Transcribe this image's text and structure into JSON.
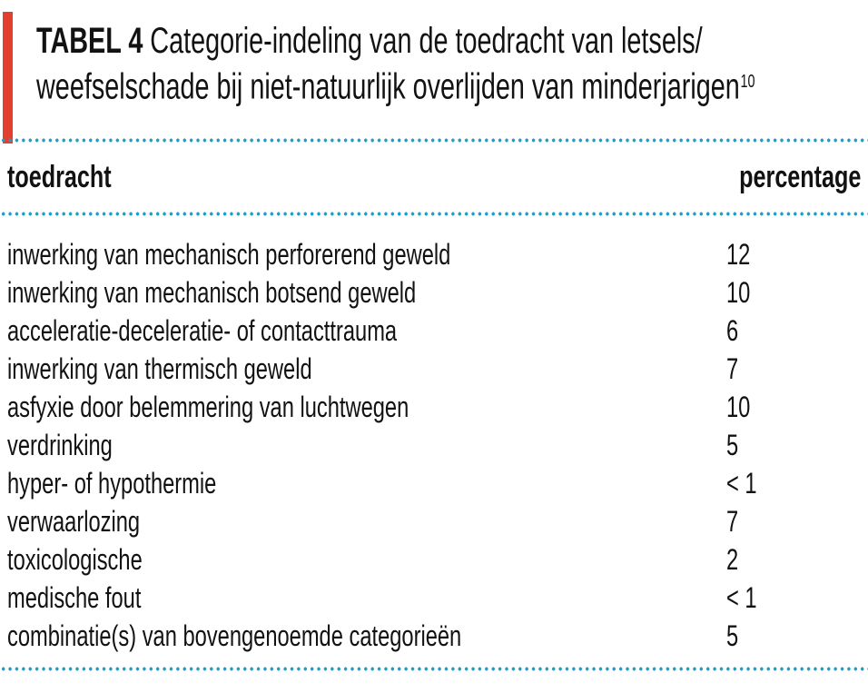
{
  "title": {
    "tag": "TABEL 4",
    "line1_rest": "Categorie-indeling van de toedracht van letsels/",
    "line2": "weefselschade bij niet-natuurlijk overlijden van minderjarigen",
    "footnote_ref": "10"
  },
  "table": {
    "col_left": "toedracht",
    "col_right": "percentage",
    "rows": [
      {
        "label": "inwerking van mechanisch perforerend geweld",
        "value": "12"
      },
      {
        "label": "inwerking van mechanisch botsend geweld",
        "value": "10"
      },
      {
        "label": "acceleratie-deceleratie- of contacttrauma",
        "value": "6"
      },
      {
        "label": "inwerking van thermisch geweld",
        "value": "7"
      },
      {
        "label": "asfyxie door belemmering van luchtwegen",
        "value": "10"
      },
      {
        "label": "verdrinking",
        "value": "5"
      },
      {
        "label": "hyper- of hypothermie",
        "value": "< 1"
      },
      {
        "label": "verwaarlozing",
        "value": "7"
      },
      {
        "label": "toxicologische",
        "value": "2"
      },
      {
        "label": "medische fout",
        "value": "< 1"
      },
      {
        "label": "combinatie(s) van bovengenoemde categorieën",
        "value": "5"
      }
    ]
  },
  "chart_data": {
    "type": "table",
    "title": "TABEL 4 Categorie-indeling van de toedracht van letsels/weefselschade bij niet-natuurlijk overlijden van minderjarigen",
    "footnote_ref": "10",
    "columns": [
      "toedracht",
      "percentage"
    ],
    "rows": [
      [
        "inwerking van mechanisch perforerend geweld",
        "12"
      ],
      [
        "inwerking van mechanisch botsend geweld",
        "10"
      ],
      [
        "acceleratie-deceleratie- of contacttrauma",
        "6"
      ],
      [
        "inwerking van thermisch geweld",
        "7"
      ],
      [
        "asfyxie door belemmering van luchtwegen",
        "10"
      ],
      [
        "verdrinking",
        "5"
      ],
      [
        "hyper- of hypothermie",
        "< 1"
      ],
      [
        "verwaarlozing",
        "7"
      ],
      [
        "toxicologische",
        "2"
      ],
      [
        "medische fout",
        "< 1"
      ],
      [
        "combinatie(s) van bovengenoemde categorieën",
        "5"
      ]
    ]
  },
  "colors": {
    "accent_red": "#E23F2F",
    "dot_blue": "#1E9DC6",
    "text": "#121212",
    "background": "#FFFFFF"
  }
}
